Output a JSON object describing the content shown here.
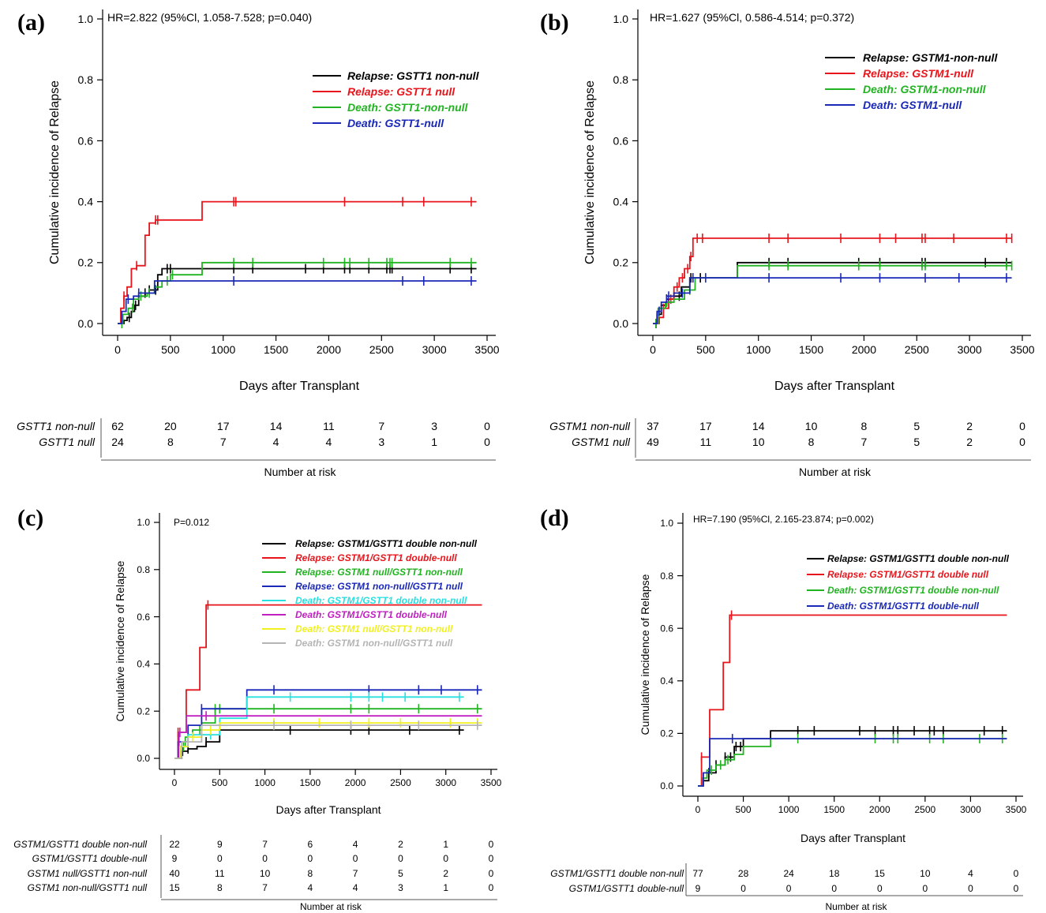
{
  "chart_data": [
    {
      "panel": "(a)",
      "type": "line",
      "annotation": "HR=2.822 (95%Cl, 1.058-7.528; p=0.040)",
      "xlabel": "Days after Transplant",
      "ylabel": "Cumulative incidence of Relapse",
      "xlim": [
        0,
        3500
      ],
      "ylim": [
        0,
        1.0
      ],
      "xticks": [
        0,
        500,
        1000,
        1500,
        2000,
        2500,
        3000,
        3500
      ],
      "yticks": [
        "0.0",
        "0.2",
        "0.4",
        "0.6",
        "0.8",
        "1.0"
      ],
      "legend_position": "top-right",
      "series": [
        {
          "name": "Relapse: GSTT1 non-null",
          "color": "#000000",
          "x": [
            0,
            60,
            90,
            130,
            160,
            200,
            260,
            300,
            380,
            420,
            500,
            800,
            3400
          ],
          "y": [
            0,
            0.01,
            0.02,
            0.04,
            0.06,
            0.09,
            0.1,
            0.11,
            0.16,
            0.18,
            0.18,
            0.18,
            0.18
          ],
          "censor": [
            110,
            170,
            260,
            300,
            360,
            470,
            500,
            1100,
            1280,
            1780,
            1950,
            2150,
            2200,
            2380,
            2550,
            2580,
            2600,
            3150,
            3350
          ]
        },
        {
          "name": "Relapse: GSTT1 null",
          "color": "#e8141b",
          "x": [
            0,
            30,
            60,
            90,
            130,
            180,
            260,
            300,
            360,
            500,
            800,
            3400
          ],
          "y": [
            0,
            0.05,
            0.09,
            0.12,
            0.18,
            0.19,
            0.29,
            0.33,
            0.34,
            0.34,
            0.4,
            0.4
          ],
          "censor": [
            60,
            180,
            360,
            380,
            1100,
            1120,
            2150,
            2700,
            2900,
            3350
          ]
        },
        {
          "name": "Death: GSTT1-non-null",
          "color": "#22b322",
          "x": [
            0,
            50,
            100,
            150,
            200,
            280,
            350,
            420,
            500,
            800,
            3400
          ],
          "y": [
            0,
            0.03,
            0.05,
            0.08,
            0.09,
            0.1,
            0.12,
            0.14,
            0.16,
            0.2,
            0.2
          ],
          "censor": [
            40,
            140,
            220,
            300,
            350,
            470,
            520,
            1100,
            1280,
            1950,
            2150,
            2200,
            2380,
            2550,
            2580,
            2600,
            3150,
            3350
          ]
        },
        {
          "name": "Death: GSTT1-null",
          "color": "#1a28b8",
          "x": [
            0,
            40,
            80,
            150,
            200,
            350,
            3400
          ],
          "y": [
            0,
            0.04,
            0.08,
            0.09,
            0.1,
            0.14,
            0.14
          ],
          "censor": [
            100,
            200,
            1100,
            2700,
            2900,
            3350
          ]
        }
      ],
      "risk_table": {
        "title": "Number at risk",
        "times": [
          "0",
          "500",
          "1000",
          "1500",
          "2000",
          "2500",
          "3000",
          "3500"
        ],
        "rows": [
          {
            "label": "GSTT1 non-null",
            "values": [
              "62",
              "20",
              "17",
              "14",
              "11",
              "7",
              "3",
              "0"
            ]
          },
          {
            "label": "GSTT1 null",
            "values": [
              "24",
              "8",
              "7",
              "4",
              "4",
              "3",
              "1",
              "0"
            ]
          }
        ]
      }
    },
    {
      "panel": "(b)",
      "type": "line",
      "annotation": "HR=1.627 (95%Cl, 0.586-4.514; p=0.372)",
      "xlabel": "Days after Transplant",
      "ylabel": "Cumulative incidence of Relapse",
      "xlim": [
        0,
        3500
      ],
      "ylim": [
        0,
        1.0
      ],
      "xticks": [
        0,
        500,
        1000,
        1500,
        2000,
        2500,
        3000,
        3500
      ],
      "yticks": [
        "0.0",
        "0.2",
        "0.4",
        "0.6",
        "0.8",
        "1.0"
      ],
      "legend_position": "top-right",
      "series": [
        {
          "name": "Relapse: GSTM1-non-null",
          "color": "#000000",
          "x": [
            0,
            40,
            80,
            130,
            200,
            270,
            350,
            400,
            800,
            3400
          ],
          "y": [
            0,
            0.03,
            0.06,
            0.08,
            0.09,
            0.12,
            0.15,
            0.15,
            0.2,
            0.2
          ],
          "censor": [
            30,
            130,
            250,
            360,
            450,
            1100,
            1280,
            1950,
            2150,
            2550,
            2580,
            3150,
            3350
          ]
        },
        {
          "name": "Relapse: GSTM1-null",
          "color": "#e8141b",
          "x": [
            0,
            60,
            100,
            150,
            200,
            250,
            300,
            350,
            380,
            3400
          ],
          "y": [
            0,
            0.02,
            0.05,
            0.08,
            0.12,
            0.15,
            0.18,
            0.22,
            0.28,
            0.28
          ],
          "censor": [
            100,
            170,
            230,
            280,
            330,
            360,
            420,
            470,
            1100,
            1280,
            1780,
            2150,
            2300,
            2550,
            2580,
            2850,
            3350,
            3400
          ]
        },
        {
          "name": "Death: GSTM1-non-null",
          "color": "#22b322",
          "x": [
            0,
            50,
            120,
            200,
            300,
            400,
            800,
            3400
          ],
          "y": [
            0,
            0.05,
            0.07,
            0.08,
            0.11,
            0.15,
            0.19,
            0.19
          ],
          "censor": [
            30,
            130,
            350,
            1100,
            1280,
            1950,
            2150,
            2550,
            2580,
            3350,
            3400
          ]
        },
        {
          "name": "Death: GSTM1-null",
          "color": "#1a28b8",
          "x": [
            0,
            40,
            80,
            130,
            200,
            350,
            3400
          ],
          "y": [
            0,
            0.04,
            0.07,
            0.09,
            0.1,
            0.15,
            0.15
          ],
          "censor": [
            60,
            150,
            280,
            380,
            500,
            1100,
            1780,
            2150,
            2580,
            2900,
            3350
          ]
        }
      ],
      "risk_table": {
        "title": "Number at risk",
        "times": [
          "0",
          "500",
          "1000",
          "1500",
          "2000",
          "2500",
          "3000",
          "3500"
        ],
        "rows": [
          {
            "label": "GSTM1 non-null",
            "values": [
              "37",
              "17",
              "14",
              "10",
              "8",
              "5",
              "2",
              "0"
            ]
          },
          {
            "label": "GSTM1 null",
            "values": [
              "49",
              "11",
              "10",
              "8",
              "7",
              "5",
              "2",
              "0"
            ]
          }
        ]
      }
    },
    {
      "panel": "(c)",
      "type": "line",
      "annotation": "P=0.012",
      "xlabel": "Days after Transplant",
      "ylabel": "Cumulative incidence of Relapse",
      "xlim": [
        0,
        3500
      ],
      "ylim": [
        0,
        1.0
      ],
      "xticks": [
        0,
        500,
        1000,
        1500,
        2000,
        2500,
        3000,
        3500
      ],
      "yticks": [
        "0.0",
        "0.2",
        "0.4",
        "0.6",
        "0.8",
        "1.0"
      ],
      "legend_position": "top-right",
      "series": [
        {
          "name": "Relapse: GSTM1/GSTT1 double non-null",
          "color": "#000000",
          "x": [
            0,
            80,
            150,
            250,
            350,
            500,
            3200
          ],
          "y": [
            0,
            0.03,
            0.04,
            0.05,
            0.07,
            0.12,
            0.12
          ],
          "censor": [
            90,
            150,
            350,
            1280,
            1950,
            2150,
            2600,
            3150
          ]
        },
        {
          "name": "Relapse: GSTM1/GSTT1 double-null",
          "color": "#e8141b",
          "x": [
            0,
            40,
            130,
            280,
            350,
            3400
          ],
          "y": [
            0,
            0.11,
            0.29,
            0.47,
            0.65,
            0.65
          ],
          "censor": [
            40,
            370
          ]
        },
        {
          "name": "Relapse: GSTM1 null/GSTT1 non-null",
          "color": "#22b322",
          "x": [
            0,
            60,
            120,
            200,
            300,
            450,
            3400
          ],
          "y": [
            0,
            0.05,
            0.09,
            0.12,
            0.15,
            0.21,
            0.21
          ],
          "censor": [
            100,
            280,
            450,
            500,
            1100,
            1950,
            2150,
            2700,
            3350
          ]
        },
        {
          "name": "Relapse: GSTM1 non-null/GSTT1 null",
          "color": "#1a28b8",
          "x": [
            0,
            40,
            150,
            300,
            800,
            3400
          ],
          "y": [
            0,
            0.07,
            0.14,
            0.21,
            0.29,
            0.29
          ],
          "censor": [
            50,
            300,
            1100,
            2150,
            2700,
            2950,
            3350
          ]
        },
        {
          "name": "Death: GSTM1/GSTT1 double non-null",
          "color": "#29e0e0",
          "x": [
            0,
            50,
            150,
            500,
            800,
            3200
          ],
          "y": [
            0,
            0.05,
            0.1,
            0.17,
            0.26,
            0.26
          ],
          "censor": [
            400,
            1280,
            1950,
            2150,
            2300,
            2550,
            3150
          ]
        },
        {
          "name": "Death: GSTM1/GSTT1 double-null",
          "color": "#c020c0",
          "x": [
            0,
            50,
            130,
            3400
          ],
          "y": [
            0,
            0.11,
            0.18,
            0.18
          ],
          "censor": [
            60,
            350
          ]
        },
        {
          "name": "Death: GSTM1 null/GSTT1 non-null",
          "color": "#f0f020",
          "x": [
            0,
            60,
            150,
            300,
            500,
            3400
          ],
          "y": [
            0,
            0.05,
            0.09,
            0.12,
            0.15,
            0.15
          ],
          "censor": [
            200,
            400,
            1100,
            1600,
            2150,
            2500,
            3050,
            3350
          ]
        },
        {
          "name": "Death: GSTM1 non-null/GSTT1 null",
          "color": "#b4b4b4",
          "x": [
            0,
            80,
            300,
            3400
          ],
          "y": [
            0,
            0.07,
            0.14,
            0.14
          ],
          "censor": [
            150,
            1100,
            1950,
            2700,
            3350
          ]
        }
      ],
      "risk_table": {
        "title": "Number at risk",
        "times": [
          "0",
          "500",
          "1000",
          "1500",
          "2000",
          "2500",
          "3000",
          "3500"
        ],
        "rows": [
          {
            "label": "GSTM1/GSTT1 double non-null",
            "values": [
              "22",
              "9",
              "7",
              "6",
              "4",
              "2",
              "1",
              "0"
            ]
          },
          {
            "label": "GSTM1/GSTT1 double-null",
            "values": [
              "9",
              "0",
              "0",
              "0",
              "0",
              "0",
              "0",
              "0"
            ]
          },
          {
            "label": "GSTM1 null/GSTT1 non-null",
            "values": [
              "40",
              "11",
              "10",
              "8",
              "7",
              "5",
              "2",
              "0"
            ]
          },
          {
            "label": "GSTM1 non-null/GSTT1 null",
            "values": [
              "15",
              "8",
              "7",
              "4",
              "4",
              "3",
              "1",
              "0"
            ]
          }
        ]
      }
    },
    {
      "panel": "(d)",
      "type": "line",
      "annotation": "HR=7.190 (95%Cl, 2.165-23.874; p=0.002)",
      "xlabel": "Days after Transplant",
      "ylabel": "Cumulative incidence of Relapse",
      "xlim": [
        0,
        3500
      ],
      "ylim": [
        0,
        1.0
      ],
      "xticks": [
        0,
        500,
        1000,
        1500,
        2000,
        2500,
        3000,
        3500
      ],
      "yticks": [
        "0.0",
        "0.2",
        "0.4",
        "0.6",
        "0.8",
        "1.0"
      ],
      "legend_position": "top-right",
      "series": [
        {
          "name": "Relapse: GSTM1/GSTT1 double non-null",
          "color": "#000000",
          "x": [
            0,
            60,
            120,
            200,
            300,
            400,
            500,
            800,
            3400
          ],
          "y": [
            0,
            0.02,
            0.05,
            0.08,
            0.11,
            0.15,
            0.18,
            0.21,
            0.21
          ],
          "censor": [
            120,
            200,
            300,
            360,
            420,
            470,
            1100,
            1280,
            1780,
            1950,
            2150,
            2200,
            2380,
            2550,
            2600,
            2700,
            3150,
            3350
          ]
        },
        {
          "name": "Relapse: GSTM1/GSTT1 double null",
          "color": "#e8141b",
          "x": [
            0,
            40,
            130,
            280,
            350,
            3400
          ],
          "y": [
            0,
            0.11,
            0.29,
            0.47,
            0.65,
            0.65
          ],
          "censor": [
            40,
            370
          ]
        },
        {
          "name": "Death: GSTM1/GSTT1 double non-null",
          "color": "#22b322",
          "x": [
            0,
            50,
            100,
            200,
            300,
            400,
            500,
            800,
            3400
          ],
          "y": [
            0,
            0.03,
            0.06,
            0.08,
            0.1,
            0.12,
            0.15,
            0.18,
            0.18
          ],
          "censor": [
            60,
            150,
            250,
            330,
            1100,
            1950,
            2150,
            2200,
            2550,
            2700,
            3100,
            3350
          ]
        },
        {
          "name": "Death: GSTM1/GSTT1 double-null",
          "color": "#1a28b8",
          "x": [
            0,
            60,
            130,
            3400
          ],
          "y": [
            0,
            0.05,
            0.18,
            0.18
          ],
          "censor": [
            380
          ]
        }
      ],
      "risk_table": {
        "title": "Number at risk",
        "times": [
          "0",
          "500",
          "1000",
          "1500",
          "2000",
          "2500",
          "3000",
          "3500"
        ],
        "rows": [
          {
            "label": "GSTM1/GSTT1 double non-null",
            "values": [
              "77",
              "28",
              "24",
              "18",
              "15",
              "10",
              "4",
              "0"
            ]
          },
          {
            "label": "GSTM1/GSTT1 double-null",
            "values": [
              "9",
              "0",
              "0",
              "0",
              "0",
              "0",
              "0",
              "0"
            ]
          }
        ]
      }
    }
  ]
}
